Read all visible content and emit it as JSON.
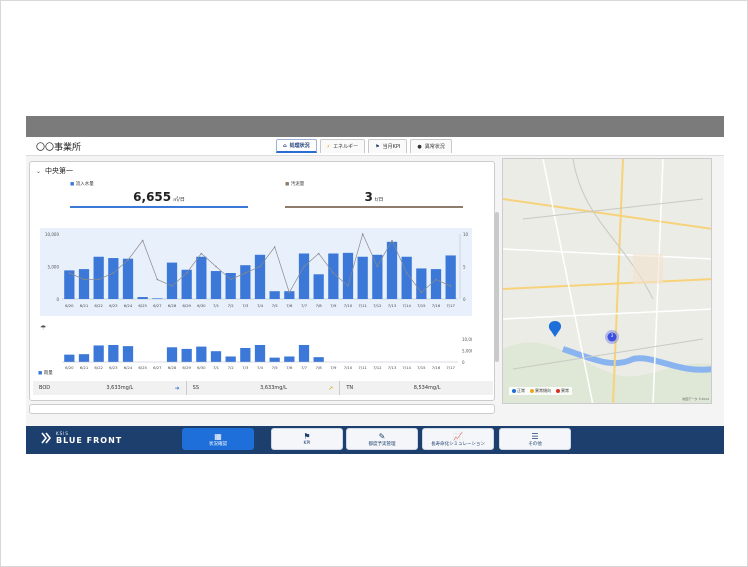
{
  "office_title": "〇〇事業所",
  "tabs": [
    {
      "label": "処理状況",
      "icon": "home-icon",
      "active": true
    },
    {
      "label": "エネルギー",
      "icon": "lightning-icon",
      "active": false
    },
    {
      "label": "当月KPI",
      "icon": "flag-icon",
      "active": false
    },
    {
      "label": "異常状況",
      "icon": "alert-icon",
      "active": false
    }
  ],
  "panel": {
    "title": "中央第一",
    "inflow_label": "流入水量",
    "inflow_value": "6,655",
    "inflow_unit": "㎥/日",
    "sludge_label": "汚泥量",
    "sludge_value": "3",
    "sludge_unit": "t/日",
    "rain_label": "雨量",
    "colors": {
      "bar": "#3b78d8",
      "line": "#8a8a8a",
      "chart_bg": "#e8f0fb"
    }
  },
  "chart_data": {
    "type": "bar",
    "categories": [
      "6/20",
      "6/21",
      "6/22",
      "6/23",
      "6/24",
      "6/25",
      "6/27",
      "6/28",
      "6/29",
      "6/30",
      "7/1",
      "7/2",
      "7/3",
      "7/4",
      "7/5",
      "7/6",
      "7/7",
      "7/8",
      "7/9",
      "7/10",
      "7/11",
      "7/12",
      "7/13",
      "7/14",
      "7/15",
      "7/16",
      "7/17"
    ],
    "y_ticks_left": [
      "10,000",
      "5,000",
      "0"
    ],
    "y_ticks_right": [
      "10",
      "5",
      "0"
    ],
    "ylim": [
      0,
      10000
    ],
    "y2lim": [
      0,
      10
    ],
    "series": [
      {
        "type": "bar",
        "values": [
          4400,
          4600,
          6500,
          6300,
          6200,
          300,
          100,
          5600,
          4500,
          6500,
          4300,
          4000,
          5200,
          6800,
          1200,
          1200,
          7000,
          3800,
          7000,
          7100,
          6500,
          6800,
          8800,
          6500,
          4700,
          4600,
          6700
        ]
      },
      {
        "type": "line",
        "values": [
          4,
          3,
          3,
          4,
          6,
          9,
          3,
          2,
          4,
          7,
          5,
          3,
          4,
          5,
          8,
          1,
          5,
          7,
          4,
          2,
          10,
          5,
          9,
          4,
          1,
          3,
          2
        ]
      }
    ],
    "rain": {
      "y_ticks": [
        "10,000",
        "5,000",
        "0"
      ],
      "values": [
        3200,
        3400,
        7200,
        7400,
        6900,
        0,
        0,
        6400,
        5700,
        6700,
        4700,
        2400,
        6100,
        7400,
        1900,
        2400,
        7400,
        2100,
        0,
        0,
        0,
        0,
        0,
        0,
        0,
        0,
        0
      ]
    }
  },
  "quality": [
    {
      "name": "BOD",
      "value": "3,633mg/L",
      "trend": "right"
    },
    {
      "name": "SS",
      "value": "3,633mg/L",
      "trend": "up"
    },
    {
      "name": "TN",
      "value": "8,534mg/L",
      "trend": "none"
    }
  ],
  "map": {
    "cluster_count": "3",
    "legend": [
      {
        "label": "正常",
        "color": "#1e6fd9"
      },
      {
        "label": "異常傾向",
        "color": "#f2a51a"
      },
      {
        "label": "異常",
        "color": "#d93025"
      }
    ],
    "credit": "地図データ ©2024"
  },
  "brand": {
    "small": "KSIS",
    "name": "BLUE FRONT"
  },
  "nav": [
    {
      "label": "状況確認",
      "icon": "grid-icon",
      "active": true
    },
    {
      "label": "KPI",
      "icon": "flag-icon",
      "active": false
    },
    {
      "label": "都度予実管理",
      "icon": "edit-icon",
      "active": false
    },
    {
      "label": "長寿命化シミュレーション",
      "icon": "chart-icon",
      "active": false
    },
    {
      "label": "その他",
      "icon": "list-icon",
      "active": false
    }
  ]
}
